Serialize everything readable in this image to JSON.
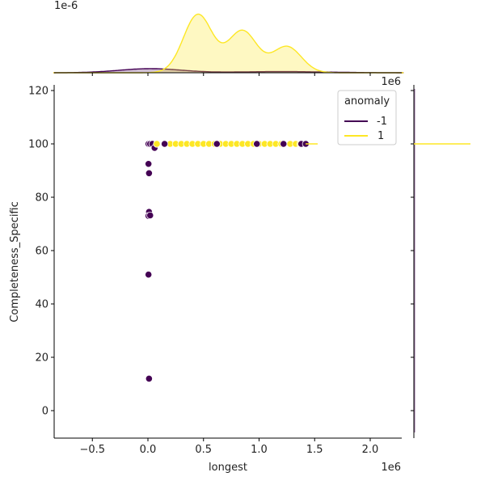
{
  "chart_data": {
    "type": "scatter",
    "kind": "jointplot",
    "title": "",
    "xlabel": "longest",
    "ylabel": "Completeness_Specific",
    "x_offset_text": "1e6",
    "top_marginal_offset_text": "1e-6",
    "right_marginal_offset_text": "1e6",
    "xlim": [
      -0.85,
      2.3
    ],
    "ylim": [
      -10,
      122
    ],
    "x_ticks": [
      -0.5,
      0.0,
      0.5,
      1.0,
      1.5,
      2.0
    ],
    "x_tick_labels": [
      "−0.5",
      "0.0",
      "0.5",
      "1.0",
      "1.5",
      "2.0"
    ],
    "y_ticks": [
      0,
      20,
      40,
      60,
      80,
      100,
      120
    ],
    "y_tick_labels": [
      "0",
      "20",
      "40",
      "60",
      "80",
      "100",
      "120"
    ],
    "grid": false,
    "legend": {
      "title": "anomaly",
      "position": "upper right",
      "entries": [
        {
          "label": "-1",
          "color": "#440154"
        },
        {
          "label": "1",
          "color": "#fde725"
        }
      ]
    },
    "series": [
      {
        "name": "-1",
        "color": "#440154",
        "points": [
          {
            "x": 0.005,
            "y": 100
          },
          {
            "x": 0.02,
            "y": 100
          },
          {
            "x": 0.04,
            "y": 100
          },
          {
            "x": 0.06,
            "y": 98.5
          },
          {
            "x": 0.15,
            "y": 100
          },
          {
            "x": 0.005,
            "y": 92.5
          },
          {
            "x": 0.01,
            "y": 89
          },
          {
            "x": 0.01,
            "y": 74.5
          },
          {
            "x": 0.005,
            "y": 73
          },
          {
            "x": 0.02,
            "y": 73.2
          },
          {
            "x": 0.005,
            "y": 51
          },
          {
            "x": 0.01,
            "y": 12
          },
          {
            "x": 0.62,
            "y": 100
          },
          {
            "x": 0.98,
            "y": 100
          },
          {
            "x": 1.22,
            "y": 100
          },
          {
            "x": 1.38,
            "y": 100
          },
          {
            "x": 1.42,
            "y": 100
          }
        ]
      },
      {
        "name": "1",
        "color": "#fde725",
        "points": [
          {
            "x": 0.08,
            "y": 100
          },
          {
            "x": 0.2,
            "y": 100
          },
          {
            "x": 0.25,
            "y": 100
          },
          {
            "x": 0.3,
            "y": 100
          },
          {
            "x": 0.35,
            "y": 100
          },
          {
            "x": 0.4,
            "y": 100
          },
          {
            "x": 0.45,
            "y": 100
          },
          {
            "x": 0.5,
            "y": 100
          },
          {
            "x": 0.55,
            "y": 100
          },
          {
            "x": 0.6,
            "y": 100
          },
          {
            "x": 0.65,
            "y": 100
          },
          {
            "x": 0.7,
            "y": 100
          },
          {
            "x": 0.75,
            "y": 100
          },
          {
            "x": 0.8,
            "y": 100
          },
          {
            "x": 0.85,
            "y": 100
          },
          {
            "x": 0.9,
            "y": 100
          },
          {
            "x": 0.95,
            "y": 100
          },
          {
            "x": 1.0,
            "y": 100
          },
          {
            "x": 1.05,
            "y": 100
          },
          {
            "x": 1.1,
            "y": 100
          },
          {
            "x": 1.15,
            "y": 100
          },
          {
            "x": 1.2,
            "y": 100
          },
          {
            "x": 1.28,
            "y": 100
          },
          {
            "x": 1.33,
            "y": 100
          },
          {
            "x": 1.37,
            "y": 100
          }
        ]
      }
    ],
    "marginal_x_kde": {
      "y_scale": "1e-6",
      "series": [
        {
          "name": "1",
          "color": "#fde725",
          "peaks": [
            {
              "x": 0.45,
              "rel_height": 1.0
            },
            {
              "x": 0.85,
              "rel_height": 0.72
            },
            {
              "x": 1.25,
              "rel_height": 0.45
            }
          ],
          "range": [
            0.0,
            1.55
          ]
        },
        {
          "name": "-1",
          "color": "#440154",
          "peaks": [
            {
              "x": 0.02,
              "rel_height": 0.07
            }
          ],
          "range": [
            -0.8,
            2.2
          ]
        }
      ]
    },
    "marginal_y_kde": {
      "series": [
        {
          "name": "1",
          "color": "#fde725",
          "description": "spike at y=100"
        },
        {
          "name": "-1",
          "color": "#440154",
          "description": "near-flat along axis"
        }
      ]
    }
  }
}
